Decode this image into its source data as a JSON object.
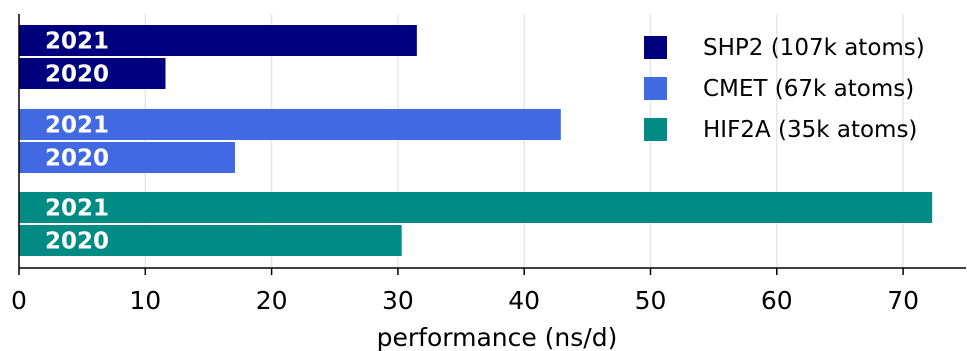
{
  "chart_data": {
    "type": "bar",
    "orientation": "horizontal",
    "title": "",
    "xlabel": "performance (ns/d)",
    "ylabel": "",
    "xlim": [
      0,
      75
    ],
    "xticks": [
      0,
      10,
      20,
      30,
      40,
      50,
      60,
      70
    ],
    "grid": "vertical",
    "legend_position": "top-right",
    "categories": [
      "2021",
      "2020"
    ],
    "series": [
      {
        "name": "SHP2 (107k atoms)",
        "color": "#00007f",
        "values": [
          31.5,
          11.6
        ]
      },
      {
        "name": "CMET (67k atoms)",
        "color": "#4169e1",
        "values": [
          42.9,
          17.1
        ]
      },
      {
        "name": "HIF2A (35k atoms)",
        "color": "#008b85",
        "values": [
          72.3,
          30.3
        ]
      }
    ]
  }
}
